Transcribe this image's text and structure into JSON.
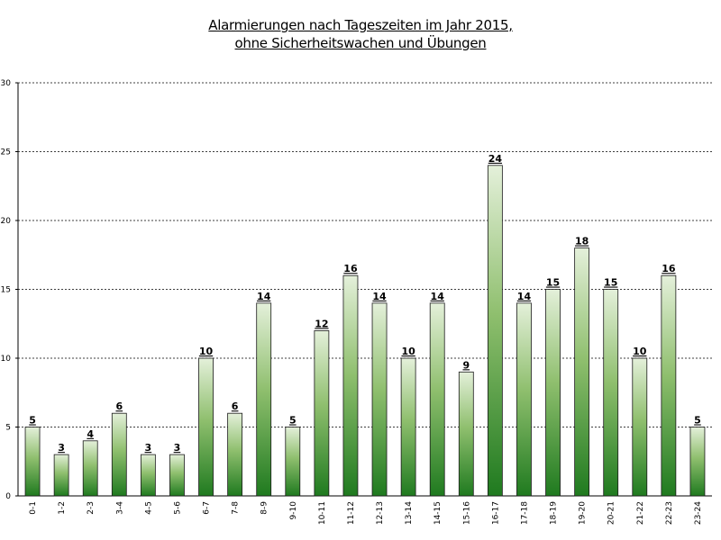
{
  "chart_data": {
    "type": "bar",
    "title": "Alarmierungen nach Tageszeiten im Jahr 2015,",
    "subtitle": "ohne Sicherheitswachen und Übungen",
    "xlabel": "",
    "ylabel": "",
    "categories": [
      "0-1",
      "1-2",
      "2-3",
      "3-4",
      "4-5",
      "5-6",
      "6-7",
      "7-8",
      "8-9",
      "9-10",
      "10-11",
      "11-12",
      "12-13",
      "13-14",
      "14-15",
      "15-16",
      "16-17",
      "17-18",
      "18-19",
      "19-20",
      "20-21",
      "21-22",
      "22-23",
      "23-24"
    ],
    "values": [
      5,
      3,
      4,
      6,
      3,
      3,
      10,
      6,
      14,
      5,
      12,
      16,
      14,
      10,
      14,
      9,
      24,
      14,
      15,
      18,
      15,
      10,
      16,
      5
    ],
    "ylim": [
      0,
      30
    ],
    "yticks": [
      0,
      5,
      10,
      15,
      20,
      25,
      30
    ],
    "grid": true,
    "legend": "none",
    "data_labels": true,
    "colors": {
      "bar_top": "#e4f0da",
      "bar_bottom": "#1f7a1f",
      "bar_border": "#1a1a1a",
      "grid": "#000000"
    }
  }
}
